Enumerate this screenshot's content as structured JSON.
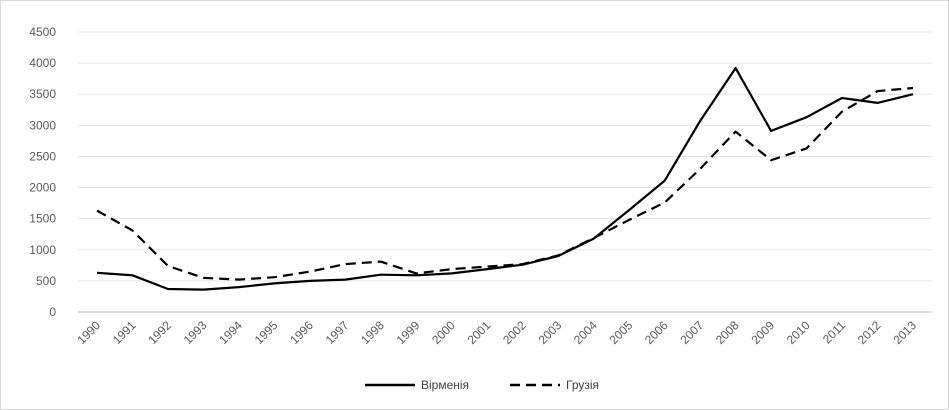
{
  "chart_data": {
    "type": "line",
    "title": "",
    "xlabel": "",
    "ylabel": "",
    "x": [
      "1990",
      "1991",
      "1992",
      "1993",
      "1994",
      "1995",
      "1996",
      "1997",
      "1998",
      "1999",
      "2000",
      "2001",
      "2002",
      "2003",
      "2004",
      "2005",
      "2006",
      "2007",
      "2008",
      "2009",
      "2010",
      "2011",
      "2012",
      "2013"
    ],
    "yticks": [
      "0",
      "500",
      "1000",
      "1500",
      "2000",
      "2500",
      "3000",
      "3500",
      "4000",
      "4500"
    ],
    "ylim": [
      0,
      4500
    ],
    "grid": true,
    "legend_position": "bottom",
    "series": [
      {
        "name": "Вірменія",
        "style": "solid",
        "color": "#000000",
        "values": [
          630,
          590,
          370,
          360,
          400,
          460,
          500,
          520,
          600,
          590,
          620,
          690,
          760,
          900,
          1180,
          1640,
          2110,
          3070,
          3920,
          2910,
          3130,
          3440,
          3360,
          3500
        ]
      },
      {
        "name": "Грузія",
        "style": "dashed",
        "color": "#000000",
        "values": [
          1630,
          1310,
          740,
          550,
          520,
          560,
          650,
          770,
          810,
          620,
          690,
          730,
          770,
          910,
          1190,
          1480,
          1760,
          2300,
          2900,
          2440,
          2630,
          3220,
          3550,
          3600
        ]
      }
    ]
  }
}
